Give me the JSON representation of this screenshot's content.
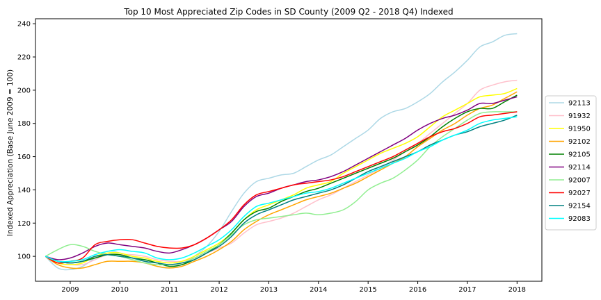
{
  "chart_data": {
    "type": "line",
    "title": "Top 10 Most Appreciated Zip Codes in SD County (2009 Q2 - 2018 Q4) Indexed",
    "xlabel": "",
    "ylabel": "Indexed Appreciation (Base June 2009 = 100)",
    "xlim": [
      2008.3,
      2018.5
    ],
    "ylim": [
      85,
      243
    ],
    "xticks": [
      2009,
      2010,
      2011,
      2012,
      2013,
      2014,
      2015,
      2016,
      2017,
      2018
    ],
    "xtick_labels": [
      "2009",
      "2010",
      "2011",
      "2012",
      "2013",
      "2014",
      "2015",
      "2016",
      "2017",
      "2018"
    ],
    "yticks": [
      100,
      120,
      140,
      160,
      180,
      200,
      220,
      240
    ],
    "ytick_labels": [
      "100",
      "120",
      "140",
      "160",
      "180",
      "200",
      "220",
      "240"
    ],
    "grid": false,
    "legend_placement": "outside-right",
    "x": [
      2008.5,
      2008.75,
      2009.0,
      2009.25,
      2009.5,
      2009.75,
      2010.0,
      2010.25,
      2010.5,
      2010.75,
      2011.0,
      2011.25,
      2011.5,
      2011.75,
      2012.0,
      2012.25,
      2012.5,
      2012.75,
      2013.0,
      2013.25,
      2013.5,
      2013.75,
      2014.0,
      2014.25,
      2014.5,
      2014.75,
      2015.0,
      2015.25,
      2015.5,
      2015.75,
      2016.0,
      2016.25,
      2016.5,
      2016.75,
      2017.0,
      2017.25,
      2017.5,
      2017.75,
      2018.0
    ],
    "series": [
      {
        "name": "92113",
        "color": "#add8e6",
        "values": [
          100,
          93,
          92,
          94,
          99,
          103,
          102,
          99,
          97,
          94,
          93,
          95,
          100,
          106,
          115,
          127,
          138,
          145,
          147,
          149,
          150,
          154,
          158,
          161,
          166,
          171,
          176,
          183,
          187,
          189,
          193,
          198,
          205,
          211,
          218,
          226,
          229,
          233,
          234
        ]
      },
      {
        "name": "91932",
        "color": "#ffc0cb",
        "values": [
          100,
          96,
          95,
          95,
          98,
          101,
          101,
          101,
          100,
          98,
          97,
          97,
          99,
          102,
          105,
          108,
          114,
          119,
          121,
          123,
          126,
          130,
          134,
          137,
          141,
          145,
          149,
          153,
          158,
          163,
          168,
          174,
          180,
          186,
          192,
          200,
          203,
          205,
          206
        ]
      },
      {
        "name": "91950",
        "color": "#ffff00",
        "values": [
          100,
          96,
          95,
          96,
          100,
          102,
          102,
          100,
          99,
          97,
          96,
          97,
          100,
          104,
          108,
          114,
          122,
          128,
          131,
          134,
          137,
          141,
          143,
          145,
          150,
          154,
          158,
          162,
          165,
          168,
          172,
          178,
          184,
          188,
          192,
          196,
          197,
          198,
          201
        ]
      },
      {
        "name": "92102",
        "color": "#ffa500",
        "values": [
          100,
          95,
          93,
          93,
          95,
          97,
          97,
          97,
          96,
          94,
          93,
          94,
          97,
          100,
          104,
          109,
          116,
          121,
          125,
          128,
          131,
          134,
          136,
          138,
          141,
          144,
          148,
          152,
          156,
          160,
          166,
          171,
          176,
          180,
          185,
          189,
          191,
          195,
          199
        ]
      },
      {
        "name": "92105",
        "color": "#008000",
        "values": [
          100,
          97,
          96,
          97,
          99,
          101,
          101,
          99,
          98,
          96,
          94,
          95,
          98,
          102,
          107,
          114,
          122,
          127,
          129,
          133,
          136,
          139,
          141,
          144,
          147,
          150,
          153,
          156,
          159,
          163,
          167,
          172,
          178,
          183,
          187,
          189,
          189,
          193,
          197
        ]
      },
      {
        "name": "92114",
        "color": "#800080",
        "values": [
          100,
          98,
          99,
          102,
          106,
          108,
          107,
          106,
          105,
          103,
          102,
          104,
          107,
          111,
          116,
          121,
          130,
          136,
          138,
          141,
          143,
          145,
          146,
          148,
          151,
          155,
          159,
          163,
          167,
          171,
          176,
          180,
          183,
          185,
          188,
          192,
          192,
          194,
          196
        ]
      },
      {
        "name": "92007",
        "color": "#90ee90",
        "values": [
          100,
          104,
          107,
          106,
          103,
          101,
          100,
          98,
          96,
          95,
          95,
          96,
          99,
          103,
          107,
          113,
          119,
          122,
          123,
          124,
          125,
          126,
          125,
          126,
          128,
          133,
          140,
          144,
          147,
          152,
          158,
          166,
          172,
          177,
          182,
          186,
          187,
          187,
          187
        ]
      },
      {
        "name": "92027",
        "color": "#ff0000",
        "values": [
          100,
          96,
          97,
          99,
          107,
          109,
          110,
          110,
          108,
          106,
          105,
          105,
          107,
          111,
          116,
          122,
          131,
          137,
          139,
          141,
          143,
          144,
          145,
          146,
          148,
          151,
          154,
          157,
          160,
          164,
          168,
          172,
          175,
          177,
          180,
          184,
          185,
          186,
          187
        ]
      },
      {
        "name": "92154",
        "color": "#008080",
        "values": [
          100,
          97,
          96,
          97,
          100,
          101,
          100,
          99,
          97,
          96,
          95,
          96,
          98,
          102,
          106,
          112,
          120,
          125,
          128,
          131,
          134,
          136,
          138,
          140,
          143,
          147,
          151,
          154,
          157,
          160,
          163,
          167,
          170,
          173,
          175,
          178,
          180,
          182,
          185
        ]
      },
      {
        "name": "92083",
        "color": "#00ffff",
        "values": [
          100,
          97,
          97,
          98,
          101,
          103,
          104,
          103,
          102,
          99,
          98,
          99,
          102,
          106,
          110,
          116,
          124,
          130,
          132,
          134,
          136,
          138,
          139,
          141,
          144,
          147,
          150,
          153,
          156,
          159,
          163,
          166,
          170,
          173,
          176,
          180,
          182,
          183,
          184
        ]
      }
    ]
  }
}
